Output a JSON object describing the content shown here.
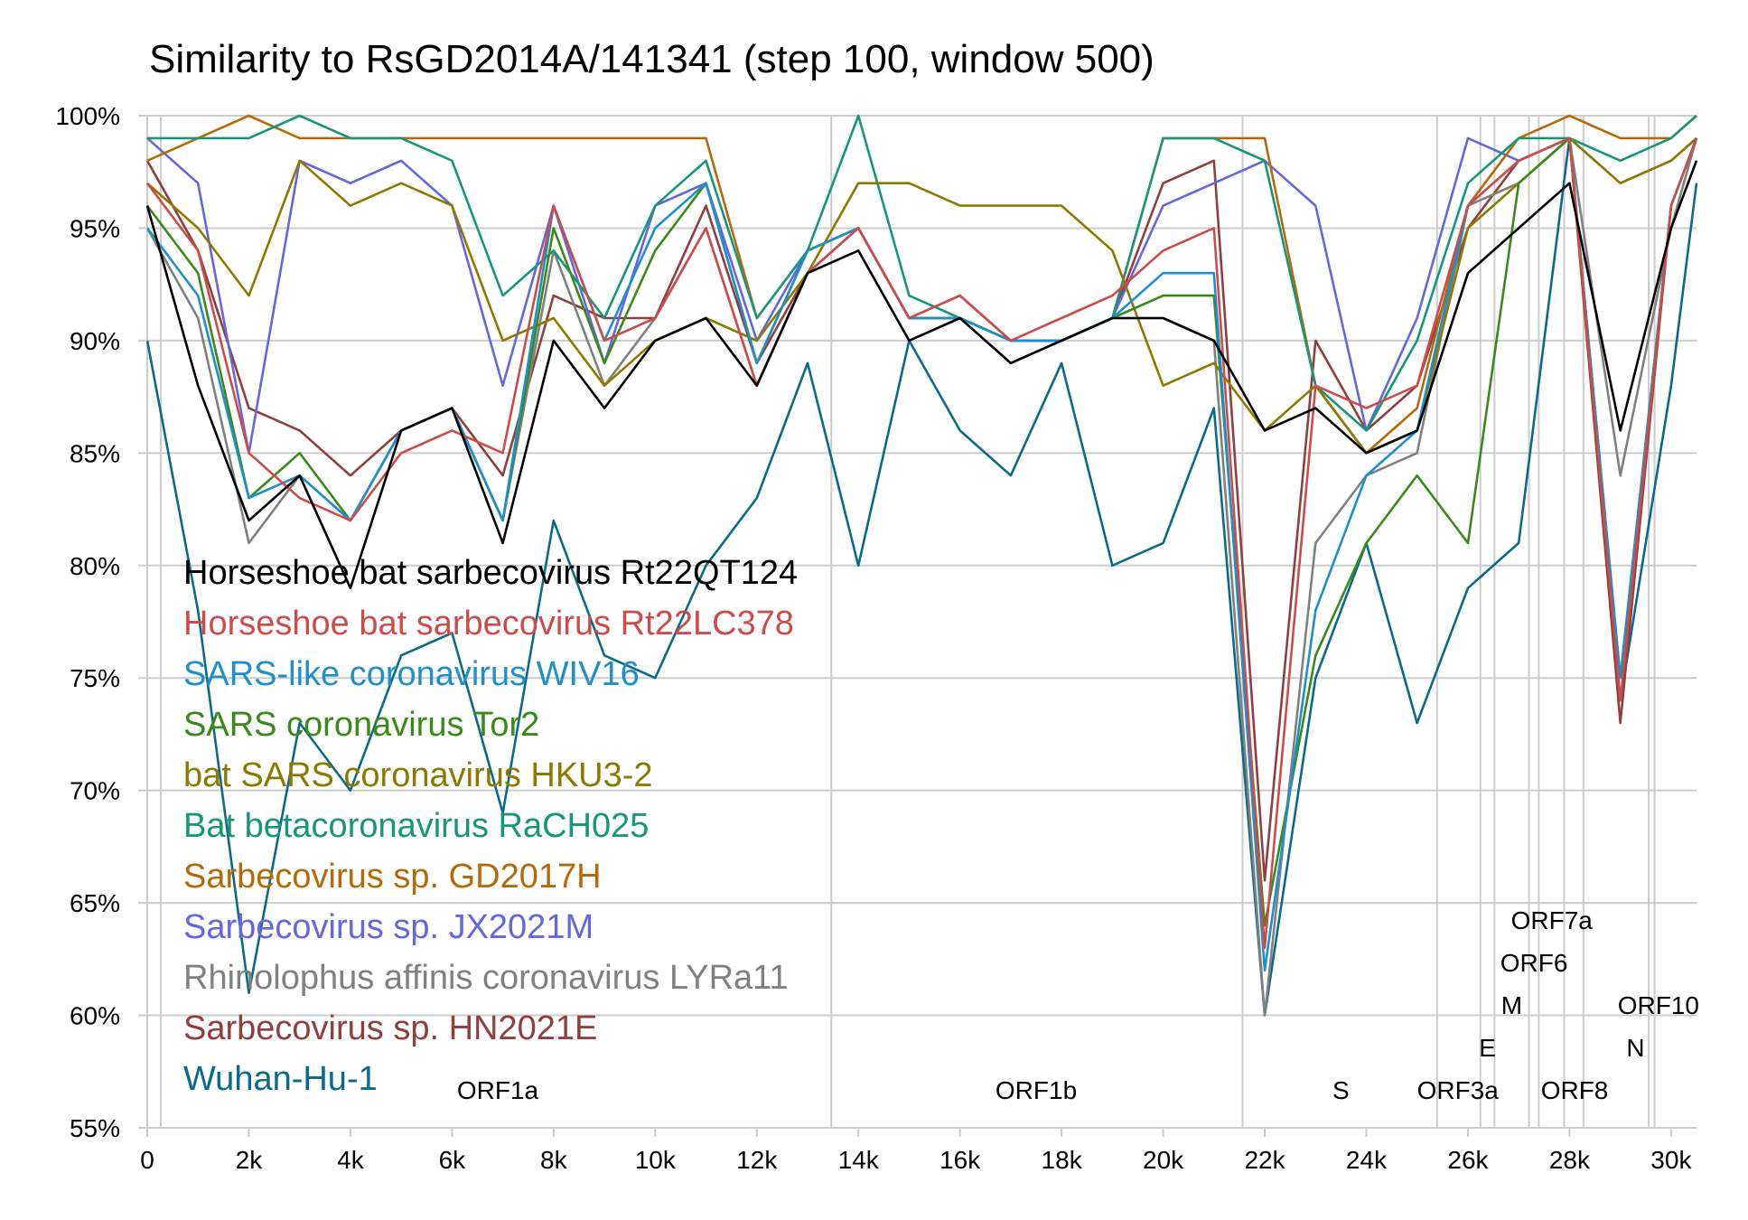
{
  "chart_data": {
    "type": "line",
    "title": "Similarity to RsGD2014A/141341 (step 100, window 500)",
    "xlabel": "",
    "ylabel": "",
    "xlim": [
      0,
      30500
    ],
    "ylim": [
      55,
      100
    ],
    "x_ticks": [
      0,
      2000,
      4000,
      6000,
      8000,
      10000,
      12000,
      14000,
      16000,
      18000,
      20000,
      22000,
      24000,
      26000,
      28000,
      30000
    ],
    "x_tick_labels": [
      "0",
      "2k",
      "4k",
      "6k",
      "8k",
      "10k",
      "12k",
      "14k",
      "16k",
      "18k",
      "20k",
      "22k",
      "24k",
      "26k",
      "28k",
      "30k"
    ],
    "y_ticks": [
      55,
      60,
      65,
      70,
      75,
      80,
      85,
      90,
      95,
      100
    ],
    "y_tick_labels": [
      "55%",
      "60%",
      "65%",
      "70%",
      "75%",
      "80%",
      "85%",
      "90%",
      "95%",
      "100%"
    ],
    "gene_boundaries": [
      266,
      13468,
      21563,
      25393,
      26245,
      26523,
      27202,
      27394,
      27894,
      28274,
      29558,
      29674
    ],
    "genes": [
      {
        "name": "ORF1a",
        "x": 6900,
        "level": 0
      },
      {
        "name": "ORF1b",
        "x": 17500,
        "level": 0
      },
      {
        "name": "S",
        "x": 23500,
        "level": 0
      },
      {
        "name": "ORF3a",
        "x": 25800,
        "level": 0
      },
      {
        "name": "E",
        "x": 26384,
        "level": 1
      },
      {
        "name": "M",
        "x": 26862,
        "level": 2
      },
      {
        "name": "ORF6",
        "x": 27300,
        "level": 3
      },
      {
        "name": "ORF7a",
        "x": 27650,
        "level": 4
      },
      {
        "name": "ORF8",
        "x": 28100,
        "level": 0
      },
      {
        "name": "N",
        "x": 29300,
        "level": 1
      },
      {
        "name": "ORF10",
        "x": 29750,
        "level": 2
      }
    ],
    "x": [
      0,
      1000,
      2000,
      3000,
      4000,
      5000,
      6000,
      7000,
      8000,
      9000,
      10000,
      11000,
      12000,
      13000,
      14000,
      15000,
      16000,
      17000,
      18000,
      19000,
      20000,
      21000,
      22000,
      23000,
      24000,
      25000,
      26000,
      27000,
      28000,
      29000,
      30000,
      30500
    ],
    "series": [
      {
        "name": "Horseshoe bat sarbecovirus Rt22QT124",
        "color": "#000000",
        "values": [
          96,
          88,
          82,
          84,
          79,
          86,
          87,
          81,
          90,
          87,
          90,
          91,
          88,
          93,
          94,
          90,
          91,
          89,
          90,
          91,
          91,
          90,
          86,
          87,
          85,
          86,
          93,
          95,
          97,
          86,
          95,
          98
        ]
      },
      {
        "name": "Horseshoe bat sarbecovirus Rt22LC378",
        "color": "#cc4c4c",
        "values": [
          97,
          94,
          85,
          83,
          82,
          85,
          86,
          85,
          96,
          90,
          91,
          95,
          88,
          93,
          95,
          91,
          92,
          90,
          91,
          92,
          94,
          95,
          63,
          88,
          87,
          88,
          96,
          98,
          99,
          74,
          96,
          99
        ]
      },
      {
        "name": "SARS-like coronavirus WIV16",
        "color": "#1f8fcc",
        "values": [
          95,
          92,
          83,
          84,
          82,
          86,
          87,
          82,
          96,
          90,
          95,
          97,
          89,
          94,
          95,
          91,
          91,
          90,
          90,
          91,
          93,
          93,
          62,
          78,
          84,
          86,
          96,
          98,
          99,
          75,
          96,
          99
        ]
      },
      {
        "name": "SARS coronavirus Tor2",
        "color": "#3a8a1a",
        "values": [
          96,
          93,
          83,
          85,
          82,
          86,
          87,
          82,
          95,
          89,
          94,
          97,
          89,
          94,
          95,
          91,
          91,
          90,
          90,
          91,
          92,
          92,
          64,
          76,
          81,
          84,
          81,
          97,
          99,
          75,
          96,
          99
        ]
      },
      {
        "name": "bat SARS coronavirus HKU3-2",
        "color": "#8c7a00",
        "values": [
          97,
          95,
          92,
          98,
          96,
          97,
          96,
          90,
          91,
          88,
          90,
          91,
          90,
          93,
          97,
          97,
          96,
          96,
          96,
          94,
          88,
          89,
          86,
          88,
          85,
          86,
          95,
          97,
          99,
          97,
          98,
          99
        ]
      },
      {
        "name": "Bat betacoronavirus RaCH025",
        "color": "#18967a",
        "values": [
          99,
          99,
          99,
          100,
          99,
          99,
          98,
          92,
          94,
          91,
          96,
          98,
          91,
          94,
          100,
          92,
          91,
          90,
          90,
          91,
          99,
          99,
          98,
          88,
          86,
          90,
          97,
          99,
          99,
          98,
          99,
          100
        ]
      },
      {
        "name": "Sarbecovirus sp. GD2017H",
        "color": "#b56a0a",
        "values": [
          98,
          99,
          100,
          99,
          99,
          99,
          99,
          99,
          99,
          99,
          99,
          99,
          91,
          94,
          95,
          91,
          91,
          90,
          90,
          91,
          99,
          99,
          99,
          88,
          85,
          87,
          96,
          99,
          100,
          99,
          99,
          100
        ]
      },
      {
        "name": "Sarbecovirus sp. JX2021M",
        "color": "#6666dd",
        "values": [
          99,
          97,
          85,
          98,
          97,
          98,
          96,
          88,
          96,
          89,
          96,
          97,
          90,
          94,
          95,
          91,
          91,
          90,
          90,
          91,
          96,
          97,
          98,
          96,
          86,
          91,
          99,
          98,
          99,
          97,
          98,
          99
        ]
      },
      {
        "name": "Rhinolophus affinis coronavirus LYRa11",
        "color": "#808080",
        "values": [
          95,
          91,
          81,
          84,
          82,
          86,
          87,
          82,
          94,
          88,
          91,
          95,
          88,
          93,
          95,
          91,
          91,
          89,
          90,
          91,
          91,
          90,
          60,
          81,
          84,
          85,
          96,
          97,
          99,
          84,
          95,
          99
        ]
      },
      {
        "name": "Sarbecovirus sp. HN2021E",
        "color": "#8f3f3f",
        "values": [
          98,
          94,
          87,
          86,
          84,
          86,
          87,
          84,
          92,
          91,
          91,
          96,
          89,
          93,
          95,
          91,
          92,
          90,
          90,
          91,
          97,
          98,
          66,
          90,
          86,
          88,
          95,
          98,
          99,
          73,
          96,
          99
        ]
      },
      {
        "name": "Wuhan-Hu-1",
        "color": "#0a6a8a",
        "values": [
          90,
          78,
          61,
          73,
          70,
          76,
          77,
          69,
          82,
          76,
          75,
          80,
          83,
          89,
          80,
          90,
          86,
          84,
          89,
          80,
          81,
          87,
          60,
          75,
          81,
          73,
          79,
          81,
          99,
          74,
          88,
          97
        ]
      }
    ]
  }
}
